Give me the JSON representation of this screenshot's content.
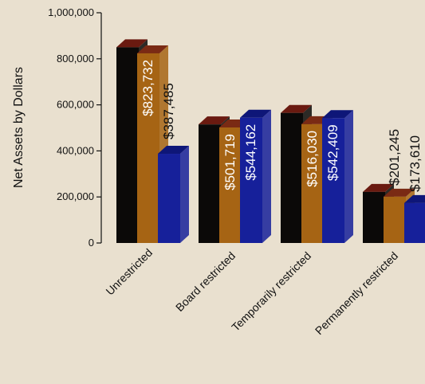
{
  "chart_data": {
    "type": "bar",
    "title": "",
    "xlabel": "",
    "ylabel": "Net Assets by Dollars",
    "ylim": [
      0,
      1000000
    ],
    "yticks": [
      0,
      200000,
      400000,
      600000,
      800000,
      1000000
    ],
    "ytick_labels": [
      "0",
      "200,000",
      "400,000",
      "600,000",
      "800,000",
      "1,000,000"
    ],
    "categories": [
      "Unrestricted",
      "Board restricted",
      "Temporarily restricted",
      "Permanently restricted"
    ],
    "series": [
      {
        "values": [
          850000,
          515000,
          565000,
          222000
        ],
        "colors": {
          "front": "#0b0908",
          "top": "#6a1a10"
        },
        "labels": [
          "",
          "",
          "",
          ""
        ]
      },
      {
        "values": [
          823732,
          501719,
          516030,
          201245
        ],
        "colors": {
          "front": "#a66414",
          "top": "#7a2a14"
        },
        "labels": [
          "$823,732",
          "$501,719",
          "$516,030",
          "$201,245"
        ]
      },
      {
        "values": [
          387485,
          544162,
          542409,
          173610
        ],
        "colors": {
          "front": "#16209a",
          "top": "#0e1678"
        },
        "labels": [
          "$387,485",
          "$544,162",
          "$542,409",
          "$173,610"
        ]
      }
    ],
    "grid": false,
    "legend": "none"
  }
}
